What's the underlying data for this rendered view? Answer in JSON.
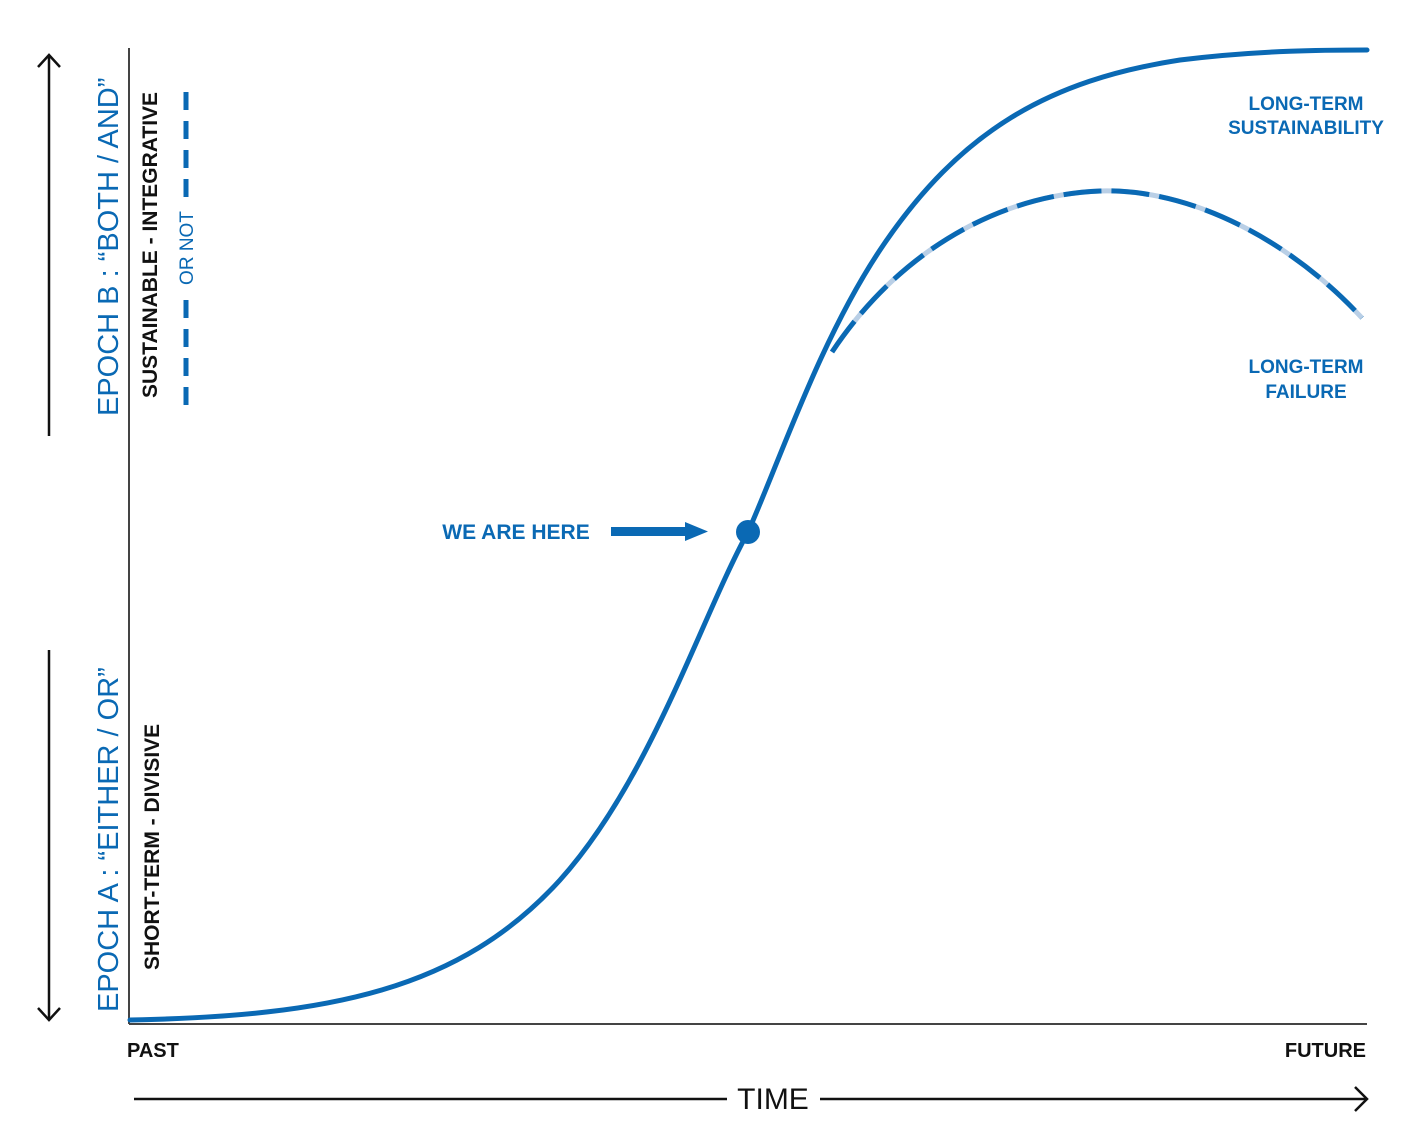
{
  "colors": {
    "accent": "#0a69b4",
    "dash_light": "#b9cfe6",
    "ink": "#111111",
    "background": "#ffffff"
  },
  "epoch_b": {
    "label": "EPOCH B : “BOTH / AND”",
    "subtitle": "SUSTAINABLE - INTEGRATIVE",
    "alt": "OR NOT"
  },
  "epoch_a": {
    "label": "EPOCH A : “EITHER / OR”",
    "subtitle": "SHORT-TERM - DIVISIVE"
  },
  "marker": {
    "label": "WE ARE HERE"
  },
  "outcomes": {
    "success": [
      "LONG-TERM",
      "SUSTAINABILITY"
    ],
    "failure": [
      "LONG-TERM",
      "FAILURE"
    ]
  },
  "axis": {
    "start": "PAST",
    "end": "FUTURE",
    "title": "TIME"
  },
  "icons": {
    "up_arrow": "arrow-up-icon",
    "down_arrow": "arrow-down-icon",
    "right_arrow": "arrow-right-icon"
  }
}
